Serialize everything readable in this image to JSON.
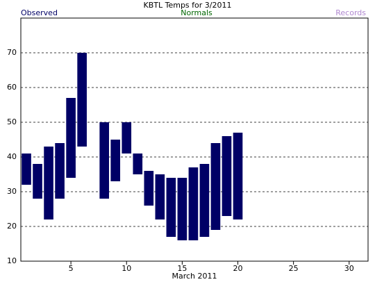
{
  "chart_data": {
    "type": "range-bar",
    "title": "KBTL Temps for 3/2011",
    "x_label": "March 2011",
    "x": [
      1,
      2,
      3,
      4,
      5,
      6,
      8,
      9,
      10,
      11,
      12,
      13,
      14,
      15,
      16,
      17,
      18,
      19,
      20
    ],
    "series": [
      {
        "name": "Observed",
        "color": "#000066",
        "low": [
          32,
          28,
          22,
          28,
          34,
          43,
          28,
          33,
          41,
          35,
          26,
          22,
          17,
          16,
          16,
          17,
          19,
          23,
          22
        ],
        "high": [
          41,
          38,
          43,
          44,
          57,
          70,
          50,
          45,
          50,
          41,
          36,
          35,
          34,
          34,
          37,
          38,
          44,
          46,
          47
        ]
      }
    ],
    "legend_extra": [
      {
        "name": "Normals",
        "color": "#006600"
      },
      {
        "name": "Records",
        "color": "#b088d0"
      }
    ],
    "xlim": [
      0.5,
      31.7
    ],
    "xticks": [
      5,
      10,
      15,
      20,
      25,
      30
    ],
    "ylim": [
      10,
      80
    ],
    "yticks": [
      10,
      20,
      30,
      40,
      50,
      60,
      70
    ],
    "grid": true
  }
}
